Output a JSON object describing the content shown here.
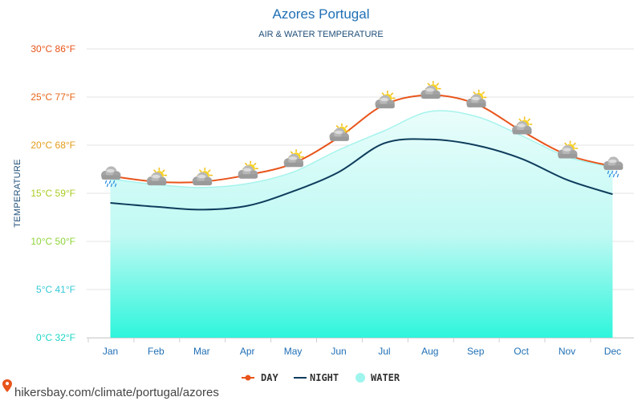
{
  "chart_data": {
    "type": "line",
    "title": "Azores Portugal",
    "subtitle": "AIR & WATER TEMPERATURE",
    "ylabel": "TEMPERATURE",
    "xlabel": "",
    "ylim": [
      0,
      30
    ],
    "yticks": [
      {
        "value": 0,
        "label": "0°C 32°F",
        "color": "#1ed6c8"
      },
      {
        "value": 5,
        "label": "5°C 41°F",
        "color": "#35c9d8"
      },
      {
        "value": 10,
        "label": "10°C 50°F",
        "color": "#8fd43a"
      },
      {
        "value": 15,
        "label": "15°C 59°F",
        "color": "#a8cc22"
      },
      {
        "value": 20,
        "label": "20°C 68°F",
        "color": "#e39c1a"
      },
      {
        "value": 25,
        "label": "25°C 77°F",
        "color": "#e8661a"
      },
      {
        "value": 30,
        "label": "30°C 86°F",
        "color": "#e8541a"
      }
    ],
    "categories": [
      "Jan",
      "Feb",
      "Mar",
      "Apr",
      "May",
      "Jun",
      "Jul",
      "Aug",
      "Sep",
      "Oct",
      "Nov",
      "Dec"
    ],
    "series": [
      {
        "name": "DAY",
        "color": "#e8541a",
        "values": [
          16.8,
          16.2,
          16.2,
          16.9,
          18.1,
          20.8,
          24.2,
          25.2,
          24.3,
          21.5,
          19.0,
          17.8
        ]
      },
      {
        "name": "NIGHT",
        "color": "#0e3c5c",
        "values": [
          14.0,
          13.6,
          13.3,
          13.7,
          15.2,
          17.2,
          20.2,
          20.6,
          20.0,
          18.6,
          16.4,
          14.9
        ]
      },
      {
        "name": "WATER",
        "color": "#9ff5ee",
        "values": [
          16.5,
          15.9,
          15.6,
          16.0,
          17.2,
          19.5,
          21.5,
          23.5,
          23.0,
          21.0,
          18.8,
          17.7
        ]
      }
    ],
    "weather_icons": [
      "rain-cloud-icon",
      "partly-sunny-icon",
      "partly-sunny-icon",
      "partly-sunny-icon",
      "partly-sunny-icon",
      "partly-sunny-icon",
      "partly-sunny-icon",
      "partly-sunny-icon",
      "partly-sunny-icon",
      "partly-sunny-icon",
      "partly-sunny-icon",
      "rain-cloud-icon"
    ],
    "legend": [
      {
        "name": "DAY",
        "type": "line-dot",
        "color": "#e8541a"
      },
      {
        "name": "NIGHT",
        "type": "line",
        "color": "#0e3c5c"
      },
      {
        "name": "WATER",
        "type": "circle",
        "color": "#9ff5ee"
      }
    ],
    "legend_position": "bottom-center",
    "grid": true
  },
  "source": {
    "icon": "location-pin-icon",
    "text": "hikersbay.com/climate/portugal/azores",
    "color": "#e8541a"
  }
}
